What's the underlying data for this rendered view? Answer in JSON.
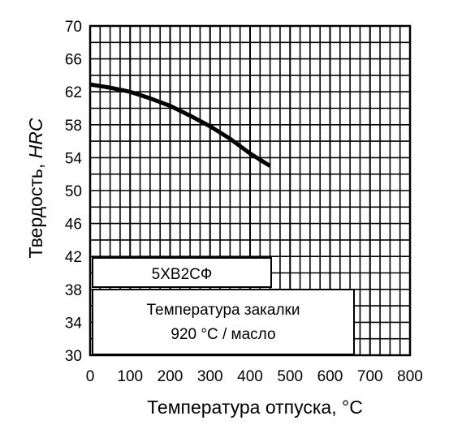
{
  "chart_data": {
    "type": "line",
    "xlabel": "Температура отпуска, °С",
    "ylabel_main": "Твердость, ",
    "ylabel_unit": "HRC",
    "xlim": [
      0,
      800
    ],
    "ylim": [
      30,
      70
    ],
    "x_ticks": [
      "0",
      "100",
      "200",
      "300",
      "400",
      "500",
      "600",
      "700",
      "800"
    ],
    "y_ticks": [
      "30",
      "34",
      "38",
      "42",
      "46",
      "50",
      "54",
      "58",
      "62",
      "66",
      "70"
    ],
    "x_minor_step": 25,
    "y_minor_step": 2,
    "grid": true,
    "series": [
      {
        "x": [
          0,
          50,
          100,
          150,
          200,
          250,
          300,
          350,
          400,
          450
        ],
        "y": [
          62.9,
          62.5,
          62.0,
          61.2,
          60.3,
          59.1,
          57.8,
          56.3,
          54.5,
          53.0
        ],
        "color": "#000000"
      }
    ],
    "annotations": {
      "steel_grade": "5ХВ2СФ",
      "quench_line1": "Температура закалки",
      "quench_line2": "920 °С / масло"
    }
  }
}
